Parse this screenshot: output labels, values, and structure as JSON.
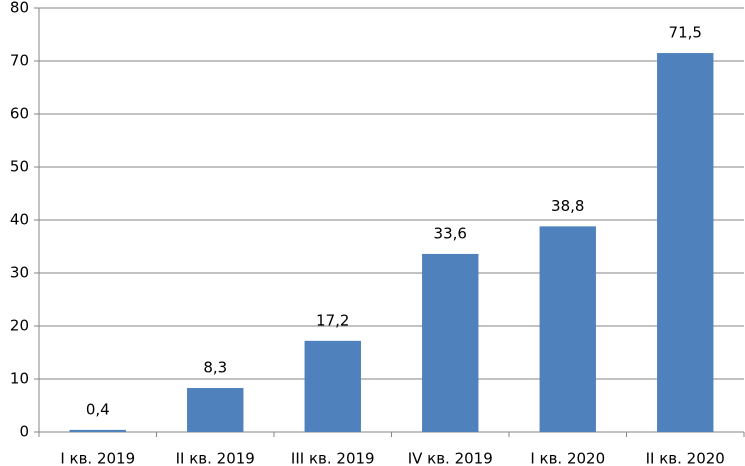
{
  "chart_data": {
    "type": "bar",
    "categories": [
      "I кв. 2019",
      "II кв. 2019",
      "III кв. 2019",
      "IV кв. 2019",
      "I кв. 2020",
      "II кв. 2020"
    ],
    "values": [
      0.4,
      8.3,
      17.2,
      33.6,
      38.8,
      71.5
    ],
    "value_labels": [
      "0,4",
      "8,3",
      "17,2",
      "33,6",
      "38,8",
      "71,5"
    ],
    "color": "#4f81bd",
    "ylim": [
      0,
      80
    ],
    "yticks": [
      0,
      10,
      20,
      30,
      40,
      50,
      60,
      70,
      80
    ],
    "grid": true
  }
}
